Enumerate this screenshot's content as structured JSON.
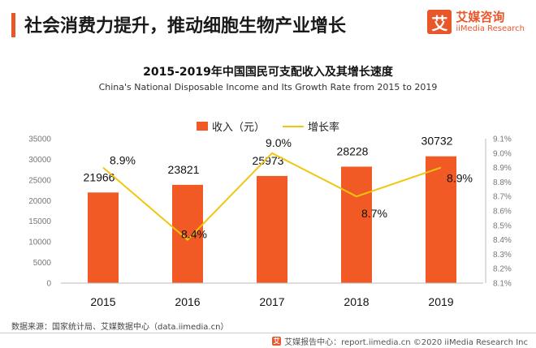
{
  "header": {
    "title": "社会消费力提升，推动细胞生物产业增长"
  },
  "logo": {
    "mark": "艾",
    "name_cn": "艾媒咨询",
    "name_en": "iiMedia Research"
  },
  "colors": {
    "bar": "#f15a24",
    "line": "#f2c50f",
    "accent": "#e8562a"
  },
  "chart_data": {
    "type": "bar",
    "title": "2015-2019年中国国民可支配收入及其增长速度",
    "subtitle": "China's National Disposable Income and Its Growth Rate from 2015 to 2019",
    "categories": [
      "2015",
      "2016",
      "2017",
      "2018",
      "2019"
    ],
    "series": [
      {
        "name": "收入（元）",
        "type": "bar",
        "axis": "left",
        "values": [
          21966,
          23821,
          25973,
          28228,
          30732
        ],
        "labels": [
          "21966",
          "23821",
          "25973",
          "28228",
          "30732"
        ]
      },
      {
        "name": "增长率",
        "type": "line",
        "axis": "right",
        "values": [
          8.9,
          8.4,
          9.0,
          8.7,
          8.9
        ],
        "labels": [
          "8.9%",
          "8.4%",
          "9.0%",
          "8.7%",
          "8.9%"
        ]
      }
    ],
    "y_left": {
      "min": 0,
      "max": 35000,
      "ticks": [
        "0",
        "5000",
        "10000",
        "15000",
        "20000",
        "25000",
        "30000",
        "35000"
      ]
    },
    "y_right": {
      "min": 8.1,
      "max": 9.1,
      "ticks": [
        "8.1%",
        "8.2%",
        "8.3%",
        "8.4%",
        "8.5%",
        "8.6%",
        "8.7%",
        "8.8%",
        "8.9%",
        "9.0%",
        "9.1%"
      ]
    },
    "grid": false,
    "legend_position": "top-center"
  },
  "footer": {
    "source": "数据来源：国家统计局、艾媒数据中心（data.iimedia.cn）",
    "right": "艾媒报告中心：report.iimedia.cn  ©2020  iiMedia Research  Inc"
  }
}
